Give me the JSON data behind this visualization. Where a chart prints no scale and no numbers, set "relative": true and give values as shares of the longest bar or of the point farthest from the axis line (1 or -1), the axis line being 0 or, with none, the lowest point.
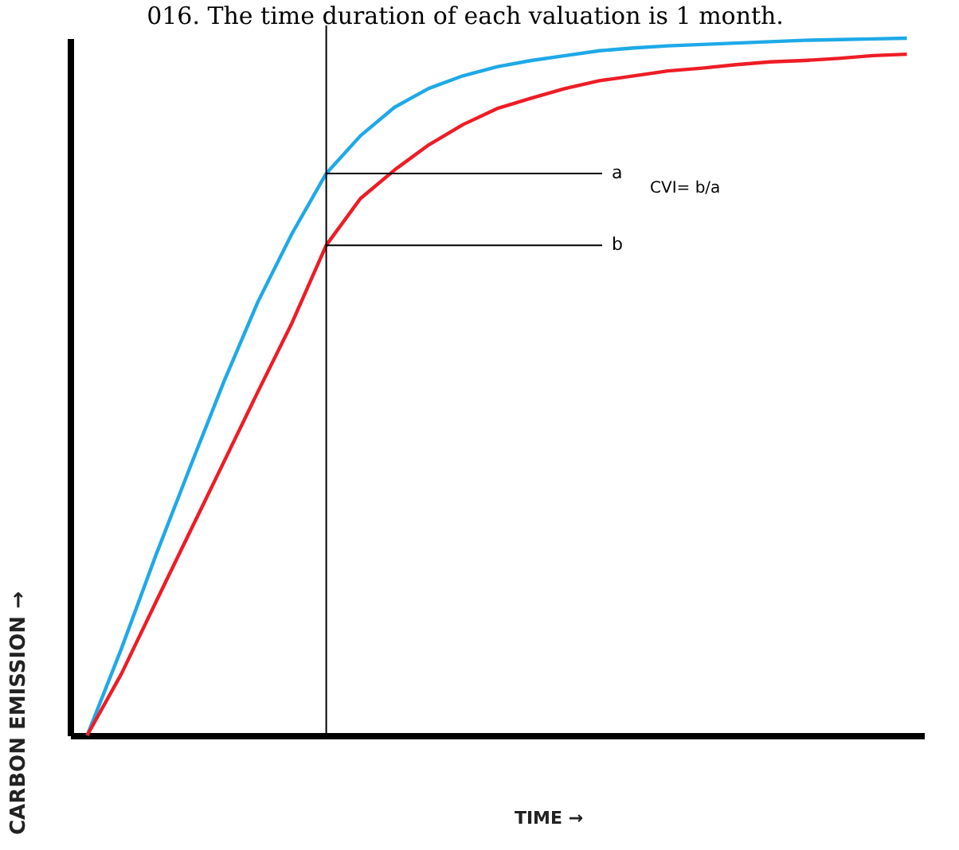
{
  "chart_data": {
    "type": "line",
    "relative": true,
    "xlabel": "TIME →",
    "ylabel": "CARBON EMISSION →",
    "marker": "none",
    "line_style": "solid",
    "categories": [
      null,
      null,
      null,
      null,
      null,
      null,
      null,
      null,
      null,
      null,
      null,
      null,
      null,
      null,
      null,
      null,
      null,
      null,
      null,
      null,
      null,
      null,
      null,
      null,
      null
    ],
    "series": [
      {
        "color": "#1ea9e8",
        "values": [
          0,
          0.124,
          0.257,
          0.383,
          0.507,
          0.622,
          0.72,
          0.806,
          0.86,
          0.901,
          0.928,
          0.946,
          0.959,
          0.968,
          0.975,
          0.982,
          0.986,
          0.989,
          0.991,
          0.993,
          0.995,
          0.997,
          0.998,
          0.999,
          1
        ]
      },
      {
        "color": "#ee1c25",
        "values": [
          0,
          0.088,
          0.19,
          0.291,
          0.392,
          0.493,
          0.592,
          0.703,
          0.77,
          0.811,
          0.847,
          0.876,
          0.899,
          0.914,
          0.928,
          0.939,
          0.946,
          0.953,
          0.957,
          0.962,
          0.966,
          0.968,
          0.971,
          0.975,
          0.977
        ]
      }
    ],
    "ref_lines": [
      {
        "axis": "y",
        "value": 0.806,
        "label": "a",
        "color": "#000000"
      },
      {
        "axis": "y",
        "value": 0.703,
        "label": "b",
        "color": "#000000"
      }
    ],
    "annotations": [
      "016. The time duration of each valuation is 1 month.",
      "CVI= b/a"
    ]
  }
}
